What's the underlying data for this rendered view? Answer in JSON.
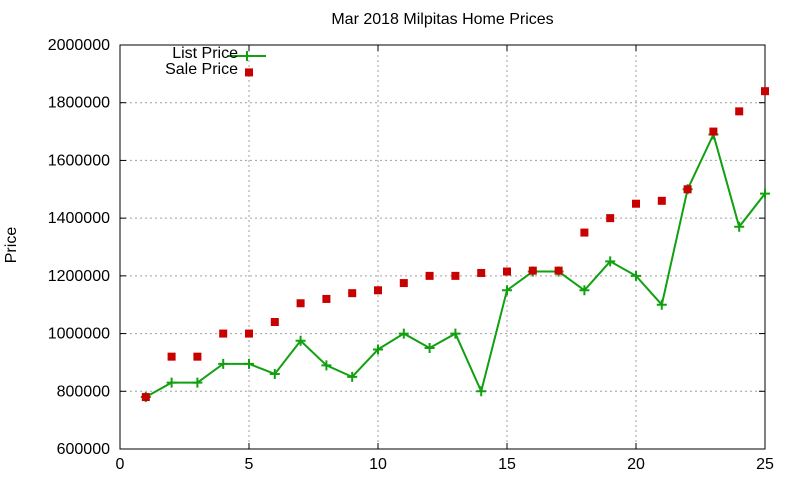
{
  "chart_data": {
    "type": "line",
    "title": "Mar 2018 Milpitas Home Prices",
    "xlabel": "",
    "ylabel": "Price",
    "xlim": [
      0,
      25
    ],
    "ylim": [
      600000,
      2000000
    ],
    "x_ticks": [
      "0",
      "5",
      "10",
      "15",
      "20",
      "25"
    ],
    "y_ticks": [
      "600000",
      "800000",
      "1000000",
      "1200000",
      "1400000",
      "1600000",
      "1800000",
      "2000000"
    ],
    "grid": true,
    "legend_position": "top-left",
    "x": [
      1,
      2,
      3,
      4,
      5,
      6,
      7,
      8,
      9,
      10,
      11,
      12,
      13,
      14,
      15,
      16,
      17,
      18,
      19,
      20,
      21,
      22,
      23,
      24,
      25
    ],
    "series": [
      {
        "name": "List Price",
        "style": "line-with-plus-markers",
        "color": "#10a010",
        "values": [
          780000,
          830000,
          830000,
          895000,
          895000,
          860000,
          975000,
          890000,
          850000,
          945000,
          1000000,
          950000,
          1000000,
          800000,
          1150000,
          1215000,
          1215000,
          1150000,
          1250000,
          1200000,
          1100000,
          1500000,
          1690000,
          1370000,
          1485000
        ]
      },
      {
        "name": "Sale Price",
        "style": "square-markers",
        "color": "#c80000",
        "x": [
          1,
          2,
          3,
          4,
          5,
          6,
          7,
          8,
          9,
          10,
          11,
          12,
          13,
          14,
          15,
          16,
          17,
          18,
          19,
          20,
          21,
          22,
          23,
          24,
          25
        ],
        "values": [
          780000,
          920000,
          920000,
          1000000,
          1000000,
          1040000,
          1105000,
          1120000,
          1140000,
          1150000,
          1175000,
          1200000,
          1200000,
          1210000,
          1215000,
          1218000,
          1218000,
          1350000,
          1400000,
          1450000,
          1460000,
          1500000,
          1700000,
          1770000,
          1840000
        ],
        "legend_marker_value": 1905000,
        "legend_marker_x": 5
      }
    ]
  }
}
